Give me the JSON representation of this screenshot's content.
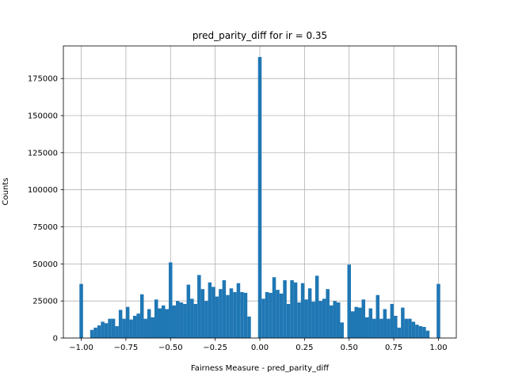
{
  "chart_data": {
    "type": "bar",
    "title": "pred_parity_diff for ir = 0.35",
    "xlabel": "Fairness Measure - pred_parity_diff",
    "ylabel": "Counts",
    "xlim": [
      -1.1,
      1.1
    ],
    "ylim": [
      0,
      197000
    ],
    "grid": true,
    "bar_color": "#1f77b4",
    "bin_width": 0.02,
    "x_ticks": [
      {
        "value": -1.0,
        "label": "−1.00"
      },
      {
        "value": -0.75,
        "label": "−0.75"
      },
      {
        "value": -0.5,
        "label": "−0.50"
      },
      {
        "value": -0.25,
        "label": "−0.25"
      },
      {
        "value": 0.0,
        "label": "0.00"
      },
      {
        "value": 0.25,
        "label": "0.25"
      },
      {
        "value": 0.5,
        "label": "0.50"
      },
      {
        "value": 0.75,
        "label": "0.75"
      },
      {
        "value": 1.0,
        "label": "1.00"
      }
    ],
    "y_ticks": [
      {
        "value": 0,
        "label": "0"
      },
      {
        "value": 25000,
        "label": "25000"
      },
      {
        "value": 50000,
        "label": "50000"
      },
      {
        "value": 75000,
        "label": "75000"
      },
      {
        "value": 100000,
        "label": "100000"
      },
      {
        "value": 125000,
        "label": "125000"
      },
      {
        "value": 150000,
        "label": "150000"
      },
      {
        "value": 175000,
        "label": "175000"
      }
    ],
    "x": [
      -1.0,
      -0.98,
      -0.96,
      -0.94,
      -0.92,
      -0.9,
      -0.88,
      -0.86,
      -0.84,
      -0.82,
      -0.8,
      -0.78,
      -0.76,
      -0.74,
      -0.72,
      -0.7,
      -0.68,
      -0.66,
      -0.64,
      -0.62,
      -0.6,
      -0.58,
      -0.56,
      -0.54,
      -0.52,
      -0.5,
      -0.48,
      -0.46,
      -0.44,
      -0.42,
      -0.4,
      -0.38,
      -0.36,
      -0.34,
      -0.32,
      -0.3,
      -0.28,
      -0.26,
      -0.24,
      -0.22,
      -0.2,
      -0.18,
      -0.16,
      -0.14,
      -0.12,
      -0.1,
      -0.08,
      -0.06,
      -0.04,
      -0.02,
      0.0,
      0.02,
      0.04,
      0.06,
      0.08,
      0.1,
      0.12,
      0.14,
      0.16,
      0.18,
      0.2,
      0.22,
      0.24,
      0.26,
      0.28,
      0.3,
      0.32,
      0.34,
      0.36,
      0.38,
      0.4,
      0.42,
      0.44,
      0.46,
      0.48,
      0.5,
      0.52,
      0.54,
      0.56,
      0.58,
      0.6,
      0.62,
      0.64,
      0.66,
      0.68,
      0.7,
      0.72,
      0.74,
      0.76,
      0.78,
      0.8,
      0.82,
      0.84,
      0.86,
      0.88,
      0.9,
      0.92,
      0.94,
      0.96,
      0.98,
      1.0
    ],
    "values": [
      36500,
      0,
      0,
      5500,
      7000,
      8500,
      11000,
      10000,
      13000,
      13000,
      8000,
      19000,
      13000,
      21000,
      12500,
      15000,
      16500,
      29500,
      13000,
      19500,
      14000,
      26000,
      20000,
      22000,
      19500,
      51000,
      22000,
      25000,
      24000,
      23000,
      36000,
      26500,
      23000,
      42500,
      33000,
      25000,
      37500,
      34500,
      28000,
      33000,
      39000,
      29000,
      33500,
      31000,
      37000,
      31000,
      30500,
      14500,
      0,
      0,
      189500,
      26500,
      31000,
      30500,
      41000,
      32500,
      30000,
      39000,
      23000,
      39000,
      37500,
      24000,
      37000,
      26000,
      33500,
      24500,
      42000,
      25000,
      26500,
      33000,
      22000,
      25000,
      24000,
      10500,
      0,
      49500,
      18000,
      21000,
      20500,
      26000,
      14000,
      20000,
      13000,
      29000,
      13000,
      19500,
      13000,
      23000,
      15000,
      7000,
      20500,
      13000,
      13000,
      11000,
      9000,
      8000,
      7500,
      5000,
      0,
      0,
      36500
    ]
  }
}
